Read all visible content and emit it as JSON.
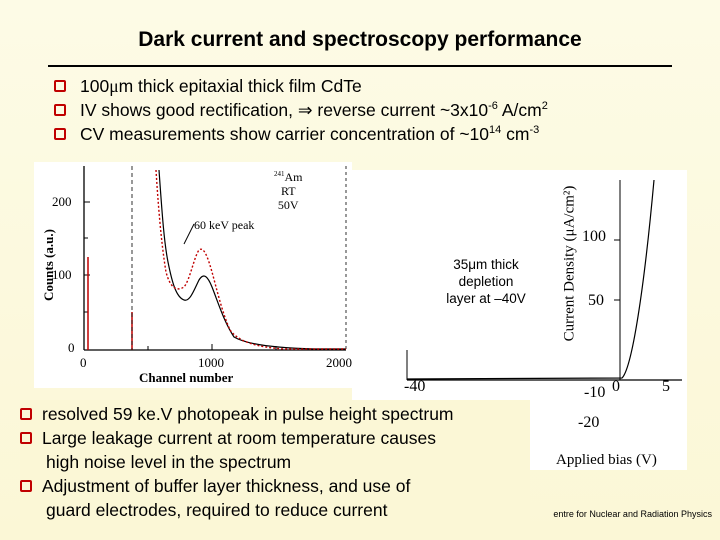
{
  "title": "Dark current and spectroscopy performance",
  "bullets_top": [
    {
      "pre": "100",
      "mu": "μ",
      "post": "m thick epitaxial thick film CdTe"
    },
    {
      "text": "IV shows good rectification, ",
      "arrow": "⇒",
      "text2": " reverse current ~3x10",
      "sup": "-6",
      "text3": " A/cm",
      "sup2": "2"
    },
    {
      "text": "CV measurements show carrier concentration of ~10",
      "sup": "14",
      "text2": " cm",
      "sup2": "-3"
    }
  ],
  "spectrum": {
    "ylabel": "Counts (a.u.)",
    "xlabel": "Channel number",
    "yticks": [
      "200",
      "100",
      "0"
    ],
    "xticks": [
      "0",
      "1000",
      "2000"
    ],
    "legend_source": "241Am",
    "legend_src_sup": "241",
    "legend_src_name": "Am",
    "legend_temp": "RT",
    "legend_bias": "50V",
    "peak_label": "60 keV peak"
  },
  "iv": {
    "ylabel": "Current Density (μA/cm²)",
    "xlabel": "Applied bias (V)",
    "yticks_pos": [
      "100",
      "50"
    ],
    "yticks_neg": [
      "-10",
      "-20"
    ],
    "xticks": [
      "-40",
      "0",
      "5"
    ],
    "annotation_line1": "35μm thick",
    "annotation_line2": "depletion",
    "annotation_line3": "layer at –40V"
  },
  "bullets_bottom": [
    {
      "text": "resolved 59 ke.V photopeak in pulse height spectrum"
    },
    {
      "text": "Large leakage current at room temperature causes",
      "cont": "high noise level in the spectrum"
    },
    {
      "text": "Adjustment of buffer layer thickness, and use of",
      "cont": "guard electrodes, required to reduce current"
    }
  ],
  "footer": "entre for Nuclear and Radiation Physics",
  "colors": {
    "bullet": "#c00000",
    "spectrum_red": "#c00000",
    "background": "#fbf7d6"
  }
}
